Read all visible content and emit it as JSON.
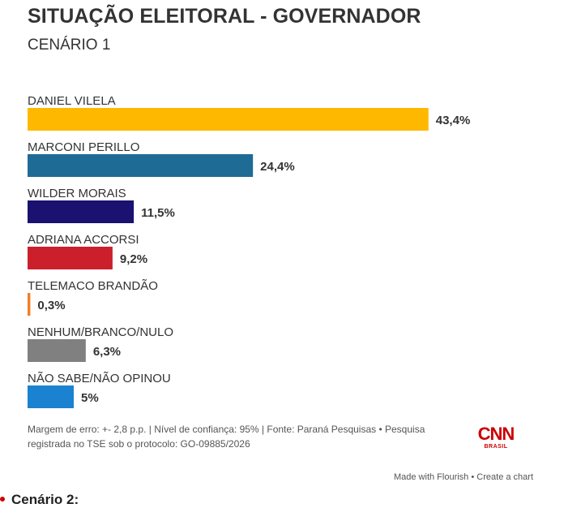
{
  "header": {
    "title": "SITUAÇÃO ELEITORAL - GOVERNADOR",
    "subtitle": "CENÁRIO 1"
  },
  "chart_data": {
    "type": "bar",
    "orientation": "horizontal",
    "title": "SITUAÇÃO ELEITORAL - GOVERNADOR",
    "subtitle": "CENÁRIO 1",
    "categories": [
      "DANIEL VILELA",
      "MARCONI PERILLO",
      "WILDER MORAIS",
      "ADRIANA ACCORSI",
      "TELEMACO BRANDÃO",
      "NENHUM/BRANCO/NULO",
      "NÃO SABE/NÃO OPINOU"
    ],
    "values": [
      43.4,
      24.4,
      11.5,
      9.2,
      0.3,
      6.3,
      5
    ],
    "value_labels": [
      "43,4%",
      "24,4%",
      "11,5%",
      "9,2%",
      "0,3%",
      "6,3%",
      "5%"
    ],
    "colors": [
      "#FFB800",
      "#1E6B96",
      "#1A1170",
      "#CC1F2C",
      "#F07E26",
      "#808080",
      "#1A82D1"
    ],
    "xlim": [
      0,
      50
    ],
    "unit": "%"
  },
  "footnote": {
    "line1": "Margem de erro: +- 2,8 p.p. | Nível de confiança: 95% | Fonte: Paraná Pesquisas • Pesquisa",
    "line2": "registrada no TSE sob o protocolo: GO-09885/2026"
  },
  "logo": {
    "brand": "CNN",
    "sub": "BRASIL"
  },
  "flourish": {
    "made_with": "Made with Flourish",
    "separator": "•",
    "create": "Create a chart"
  },
  "next_section": {
    "label": "Cenário 2:"
  }
}
